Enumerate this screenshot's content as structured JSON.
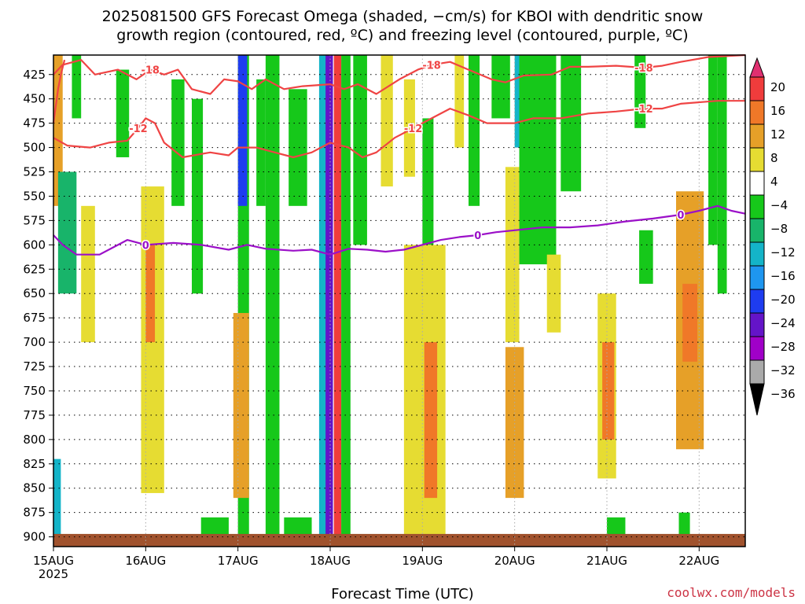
{
  "header": {
    "title_line1": "2025081500 GFS Forecast Omega (shaded, −cm/s) for KBOI with dendritic snow",
    "title_line2": "growth region (contoured, red, ºC) and freezing level (contoured, purple, ºC)"
  },
  "footer": {
    "xlabel": "Forecast Time (UTC)",
    "credit": "coolwx.com/models"
  },
  "chart_data": {
    "type": "heatmap",
    "x_axis": {
      "ticks": [
        "15AUG",
        "16AUG",
        "17AUG",
        "18AUG",
        "19AUG",
        "20AUG",
        "21AUG",
        "22AUG"
      ],
      "first_tick_year": "2025",
      "range_days": [
        0,
        7.5
      ]
    },
    "y_axis": {
      "ticks": [
        425,
        450,
        475,
        500,
        525,
        550,
        575,
        600,
        625,
        650,
        675,
        700,
        725,
        750,
        775,
        800,
        825,
        850,
        875,
        900
      ],
      "range_hpa": [
        405,
        910
      ],
      "inverted": true,
      "grid": "dotted"
    },
    "colorbar": {
      "labels": [
        "20",
        "16",
        "12",
        "8",
        "4",
        "−4",
        "−8",
        "−12",
        "−16",
        "−20",
        "−24",
        "−28",
        "−32",
        "−36"
      ],
      "colors": [
        "#e03070",
        "#f03c3c",
        "#f07828",
        "#e6a028",
        "#e6dc32",
        "#ffffff",
        "#16c81a",
        "#18b46a",
        "#14b4c8",
        "#1e96f0",
        "#1e3cf0",
        "#6414c8",
        "#a000c8",
        "#aaaaaa",
        "#000000"
      ]
    },
    "shading_cells": [
      {
        "x0": 0.0,
        "x1": 0.1,
        "p0": 405,
        "p1": 560,
        "v": 8
      },
      {
        "x0": 0.05,
        "x1": 0.25,
        "p0": 525,
        "p1": 650,
        "v": -12
      },
      {
        "x0": 0.0,
        "x1": 0.08,
        "p0": 820,
        "p1": 905,
        "v": -16
      },
      {
        "x0": 0.2,
        "x1": 0.3,
        "p0": 405,
        "p1": 470,
        "v": -8
      },
      {
        "x0": 0.3,
        "x1": 0.45,
        "p0": 560,
        "p1": 700,
        "v": 4
      },
      {
        "x0": 0.68,
        "x1": 0.82,
        "p0": 420,
        "p1": 510,
        "v": -8
      },
      {
        "x0": 0.95,
        "x1": 1.2,
        "p0": 540,
        "p1": 855,
        "v": 4
      },
      {
        "x0": 1.0,
        "x1": 1.1,
        "p0": 600,
        "p1": 700,
        "v": 12
      },
      {
        "x0": 1.28,
        "x1": 1.42,
        "p0": 430,
        "p1": 560,
        "v": -8
      },
      {
        "x0": 1.5,
        "x1": 1.62,
        "p0": 450,
        "p1": 650,
        "v": -8
      },
      {
        "x0": 2.0,
        "x1": 2.12,
        "p0": 405,
        "p1": 900,
        "v": -8
      },
      {
        "x0": 2.0,
        "x1": 2.1,
        "p0": 405,
        "p1": 560,
        "v": -24
      },
      {
        "x0": 1.95,
        "x1": 2.12,
        "p0": 670,
        "p1": 860,
        "v": 8
      },
      {
        "x0": 2.2,
        "x1": 2.3,
        "p0": 430,
        "p1": 560,
        "v": -8
      },
      {
        "x0": 2.3,
        "x1": 2.45,
        "p0": 405,
        "p1": 900,
        "v": -8
      },
      {
        "x0": 2.55,
        "x1": 2.75,
        "p0": 440,
        "p1": 560,
        "v": -8
      },
      {
        "x0": 2.88,
        "x1": 3.0,
        "p0": 405,
        "p1": 900,
        "v": -16
      },
      {
        "x0": 2.95,
        "x1": 3.03,
        "p0": 405,
        "p1": 900,
        "v": -28
      },
      {
        "x0": 3.04,
        "x1": 3.12,
        "p0": 405,
        "p1": 900,
        "v": 16
      },
      {
        "x0": 3.12,
        "x1": 3.22,
        "p0": 405,
        "p1": 900,
        "v": -8
      },
      {
        "x0": 3.25,
        "x1": 3.4,
        "p0": 405,
        "p1": 600,
        "v": -8
      },
      {
        "x0": 3.55,
        "x1": 3.68,
        "p0": 405,
        "p1": 540,
        "v": 4
      },
      {
        "x0": 3.8,
        "x1": 3.92,
        "p0": 430,
        "p1": 530,
        "v": 4
      },
      {
        "x0": 4.0,
        "x1": 4.12,
        "p0": 470,
        "p1": 600,
        "v": -8
      },
      {
        "x0": 3.8,
        "x1": 4.25,
        "p0": 600,
        "p1": 905,
        "v": 4
      },
      {
        "x0": 4.02,
        "x1": 4.16,
        "p0": 700,
        "p1": 860,
        "v": 12
      },
      {
        "x0": 4.35,
        "x1": 4.45,
        "p0": 405,
        "p1": 500,
        "v": 4
      },
      {
        "x0": 4.5,
        "x1": 4.62,
        "p0": 405,
        "p1": 560,
        "v": -8
      },
      {
        "x0": 4.75,
        "x1": 4.95,
        "p0": 405,
        "p1": 470,
        "v": -8
      },
      {
        "x0": 4.9,
        "x1": 5.05,
        "p0": 520,
        "p1": 700,
        "v": 4
      },
      {
        "x0": 4.9,
        "x1": 5.1,
        "p0": 705,
        "p1": 860,
        "v": 8
      },
      {
        "x0": 5.0,
        "x1": 5.2,
        "p0": 405,
        "p1": 500,
        "v": -16
      },
      {
        "x0": 5.05,
        "x1": 5.45,
        "p0": 405,
        "p1": 620,
        "v": -8
      },
      {
        "x0": 5.35,
        "x1": 5.5,
        "p0": 610,
        "p1": 690,
        "v": 4
      },
      {
        "x0": 5.5,
        "x1": 5.72,
        "p0": 405,
        "p1": 545,
        "v": -8
      },
      {
        "x0": 5.9,
        "x1": 6.1,
        "p0": 650,
        "p1": 840,
        "v": 4
      },
      {
        "x0": 5.95,
        "x1": 6.08,
        "p0": 700,
        "p1": 800,
        "v": 12
      },
      {
        "x0": 6.3,
        "x1": 6.42,
        "p0": 405,
        "p1": 480,
        "v": -8
      },
      {
        "x0": 6.35,
        "x1": 6.5,
        "p0": 585,
        "p1": 640,
        "v": -8
      },
      {
        "x0": 6.75,
        "x1": 7.05,
        "p0": 545,
        "p1": 810,
        "v": 8
      },
      {
        "x0": 6.82,
        "x1": 6.98,
        "p0": 640,
        "p1": 720,
        "v": 12
      },
      {
        "x0": 7.1,
        "x1": 7.2,
        "p0": 405,
        "p1": 600,
        "v": -8
      },
      {
        "x0": 7.2,
        "x1": 7.3,
        "p0": 405,
        "p1": 650,
        "v": -8
      },
      {
        "x0": 6.0,
        "x1": 6.2,
        "p0": 880,
        "p1": 905,
        "v": -8
      },
      {
        "x0": 6.78,
        "x1": 6.9,
        "p0": 875,
        "p1": 905,
        "v": -8
      },
      {
        "x0": 2.5,
        "x1": 2.8,
        "p0": 880,
        "p1": 905,
        "v": -8
      },
      {
        "x0": 1.6,
        "x1": 1.9,
        "p0": 880,
        "p1": 905,
        "v": -8
      }
    ],
    "contours": [
      {
        "color": "#ef4444",
        "label": "-18",
        "points": [
          [
            0.0,
            425
          ],
          [
            0.1,
            415
          ],
          [
            0.3,
            410
          ],
          [
            0.45,
            425
          ],
          [
            0.7,
            420
          ],
          [
            0.9,
            430
          ],
          [
            1.05,
            420
          ],
          [
            1.2,
            425
          ],
          [
            1.35,
            420
          ],
          [
            1.5,
            440
          ],
          [
            1.7,
            445
          ],
          [
            1.85,
            430
          ],
          [
            2.0,
            432
          ],
          [
            2.15,
            440
          ],
          [
            2.3,
            430
          ],
          [
            2.5,
            440
          ],
          [
            2.7,
            437
          ],
          [
            3.0,
            435
          ],
          [
            3.15,
            440
          ],
          [
            3.3,
            435
          ],
          [
            3.5,
            445
          ],
          [
            3.75,
            430
          ],
          [
            3.95,
            420
          ],
          [
            4.1,
            415
          ],
          [
            4.3,
            412
          ],
          [
            4.5,
            420
          ],
          [
            4.75,
            430
          ],
          [
            4.9,
            433
          ],
          [
            5.1,
            426
          ],
          [
            5.4,
            425
          ],
          [
            5.6,
            417
          ],
          [
            5.8,
            417
          ],
          [
            6.1,
            416
          ],
          [
            6.4,
            418
          ],
          [
            6.6,
            416
          ],
          [
            6.8,
            412
          ],
          [
            7.1,
            407
          ],
          [
            7.5,
            405
          ]
        ]
      },
      {
        "color": "#ef4444",
        "label": "-12",
        "points": [
          [
            0.0,
            490
          ],
          [
            0.15,
            498
          ],
          [
            0.4,
            500
          ],
          [
            0.6,
            495
          ],
          [
            0.8,
            493
          ],
          [
            0.92,
            480
          ],
          [
            1.0,
            470
          ],
          [
            1.1,
            475
          ],
          [
            1.2,
            495
          ],
          [
            1.4,
            510
          ],
          [
            1.7,
            505
          ],
          [
            1.9,
            508
          ],
          [
            2.0,
            500
          ],
          [
            2.2,
            500
          ],
          [
            2.4,
            505
          ],
          [
            2.6,
            510
          ],
          [
            2.8,
            505
          ],
          [
            3.0,
            495
          ],
          [
            3.2,
            500
          ],
          [
            3.35,
            510
          ],
          [
            3.5,
            505
          ],
          [
            3.7,
            490
          ],
          [
            3.9,
            480
          ],
          [
            4.1,
            470
          ],
          [
            4.3,
            460
          ],
          [
            4.5,
            467
          ],
          [
            4.7,
            475
          ],
          [
            5.0,
            475
          ],
          [
            5.2,
            470
          ],
          [
            5.5,
            470
          ],
          [
            5.8,
            465
          ],
          [
            6.1,
            463
          ],
          [
            6.4,
            460
          ],
          [
            6.6,
            460
          ],
          [
            6.8,
            455
          ],
          [
            7.2,
            452
          ],
          [
            7.5,
            452
          ]
        ]
      },
      {
        "color": "#ef4444",
        "label": "",
        "points": [
          [
            0.0,
            475
          ],
          [
            0.05,
            440
          ],
          [
            0.08,
            425
          ],
          [
            0.12,
            410
          ]
        ]
      },
      {
        "color": "#9b10c8",
        "label": "0",
        "points": [
          [
            0.0,
            590
          ],
          [
            0.1,
            600
          ],
          [
            0.25,
            610
          ],
          [
            0.5,
            610
          ],
          [
            0.8,
            595
          ],
          [
            1.0,
            600
          ],
          [
            1.3,
            598
          ],
          [
            1.6,
            600
          ],
          [
            1.9,
            605
          ],
          [
            2.1,
            600
          ],
          [
            2.3,
            604
          ],
          [
            2.6,
            606
          ],
          [
            2.8,
            605
          ],
          [
            3.0,
            610
          ],
          [
            3.2,
            604
          ],
          [
            3.4,
            605
          ],
          [
            3.6,
            607
          ],
          [
            3.8,
            605
          ],
          [
            4.0,
            600
          ],
          [
            4.2,
            595
          ],
          [
            4.4,
            592
          ],
          [
            4.6,
            590
          ],
          [
            4.8,
            587
          ],
          [
            5.0,
            585
          ],
          [
            5.3,
            582
          ],
          [
            5.6,
            582
          ],
          [
            5.9,
            580
          ],
          [
            6.2,
            576
          ],
          [
            6.5,
            573
          ],
          [
            6.8,
            569
          ],
          [
            7.0,
            565
          ],
          [
            7.2,
            560
          ],
          [
            7.35,
            565
          ],
          [
            7.5,
            568
          ]
        ]
      }
    ],
    "surface_band_hpa": [
      897,
      910
    ]
  }
}
